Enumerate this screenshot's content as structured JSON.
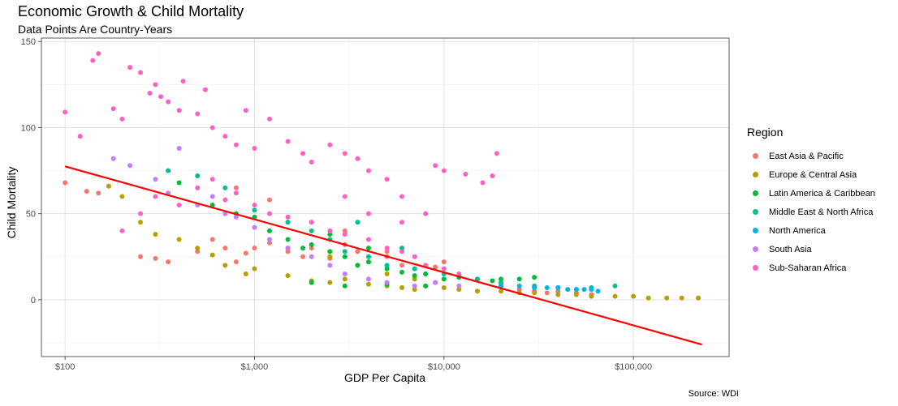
{
  "title": "Economic Growth & Child Mortality",
  "subtitle": "Data Points Are Country-Years",
  "caption": "Source: WDI",
  "chart_data": {
    "type": "scatter",
    "title": "Economic Growth & Child Mortality",
    "subtitle": "Data Points Are Country-Years",
    "xlabel": "GDP Per Capita",
    "ylabel": "Child Mortality",
    "x_scale": "log10",
    "xlim": [
      75,
      320000
    ],
    "ylim": [
      -33,
      152
    ],
    "x_ticks": [
      100,
      1000,
      10000,
      100000
    ],
    "x_tick_labels": [
      "$100",
      "$1,000",
      "$10,000",
      "$100,000"
    ],
    "y_ticks": [
      0,
      50,
      100,
      150
    ],
    "y_tick_labels": [
      "0",
      "50",
      "100",
      "150"
    ],
    "grid": true,
    "legend_title": "Region",
    "legend_position": "right",
    "series": [
      {
        "name": "East Asia & Pacific",
        "color": "#F8766D",
        "points": [
          [
            100,
            68
          ],
          [
            130,
            63
          ],
          [
            150,
            62
          ],
          [
            250,
            25
          ],
          [
            300,
            24
          ],
          [
            350,
            22
          ],
          [
            500,
            28
          ],
          [
            600,
            35
          ],
          [
            700,
            30
          ],
          [
            800,
            22
          ],
          [
            900,
            27
          ],
          [
            1000,
            30
          ],
          [
            1200,
            33
          ],
          [
            1500,
            28
          ],
          [
            1800,
            25
          ],
          [
            2000,
            30
          ],
          [
            2500,
            24
          ],
          [
            3000,
            32
          ],
          [
            3500,
            28
          ],
          [
            4000,
            22
          ],
          [
            5000,
            25
          ],
          [
            6000,
            20
          ],
          [
            7000,
            18
          ],
          [
            8000,
            15
          ],
          [
            9000,
            19
          ],
          [
            10000,
            22
          ],
          [
            12000,
            14
          ],
          [
            15000,
            12
          ],
          [
            20000,
            9
          ],
          [
            25000,
            6
          ],
          [
            30000,
            5
          ],
          [
            35000,
            4
          ],
          [
            40000,
            5
          ],
          [
            50000,
            4
          ],
          [
            60000,
            3
          ],
          [
            800,
            65
          ],
          [
            1200,
            58
          ],
          [
            2000,
            45
          ],
          [
            3000,
            40
          ],
          [
            5000,
            28
          ]
        ]
      },
      {
        "name": "Europe & Central Asia",
        "color": "#B79F00",
        "points": [
          [
            170,
            66
          ],
          [
            200,
            60
          ],
          [
            250,
            45
          ],
          [
            300,
            38
          ],
          [
            400,
            35
          ],
          [
            500,
            30
          ],
          [
            600,
            26
          ],
          [
            700,
            20
          ],
          [
            900,
            15
          ],
          [
            1000,
            18
          ],
          [
            1500,
            14
          ],
          [
            2000,
            11
          ],
          [
            2500,
            10
          ],
          [
            3000,
            12
          ],
          [
            4000,
            9
          ],
          [
            5000,
            8
          ],
          [
            6000,
            7
          ],
          [
            7000,
            6
          ],
          [
            8000,
            8
          ],
          [
            10000,
            7
          ],
          [
            12000,
            6
          ],
          [
            15000,
            5
          ],
          [
            20000,
            5
          ],
          [
            25000,
            4
          ],
          [
            30000,
            4
          ],
          [
            40000,
            3
          ],
          [
            50000,
            3
          ],
          [
            60000,
            2
          ],
          [
            80000,
            2
          ],
          [
            100000,
            2
          ],
          [
            120000,
            1
          ],
          [
            150000,
            1
          ],
          [
            180000,
            1
          ],
          [
            220000,
            1
          ],
          [
            1500,
            30
          ],
          [
            2500,
            25
          ],
          [
            3500,
            20
          ],
          [
            5000,
            15
          ],
          [
            7000,
            12
          ],
          [
            9000,
            10
          ]
        ]
      },
      {
        "name": "Latin America & Caribbean",
        "color": "#00BA38",
        "points": [
          [
            400,
            68
          ],
          [
            600,
            55
          ],
          [
            800,
            50
          ],
          [
            1000,
            48
          ],
          [
            1200,
            40
          ],
          [
            1500,
            35
          ],
          [
            1800,
            30
          ],
          [
            2000,
            32
          ],
          [
            2500,
            28
          ],
          [
            3000,
            25
          ],
          [
            3500,
            20
          ],
          [
            4000,
            22
          ],
          [
            5000,
            18
          ],
          [
            6000,
            16
          ],
          [
            7000,
            14
          ],
          [
            8000,
            15
          ],
          [
            10000,
            12
          ],
          [
            12000,
            13
          ],
          [
            15000,
            12
          ],
          [
            18000,
            11
          ],
          [
            20000,
            12
          ],
          [
            25000,
            12
          ],
          [
            30000,
            13
          ],
          [
            2000,
            10
          ],
          [
            3000,
            8
          ],
          [
            5000,
            9
          ],
          [
            8000,
            8
          ],
          [
            1500,
            45
          ],
          [
            2500,
            38
          ],
          [
            4000,
            30
          ]
        ]
      },
      {
        "name": "Middle East & North Africa",
        "color": "#00C08B",
        "points": [
          [
            350,
            75
          ],
          [
            500,
            72
          ],
          [
            700,
            65
          ],
          [
            1000,
            52
          ],
          [
            1500,
            45
          ],
          [
            2000,
            40
          ],
          [
            2500,
            35
          ],
          [
            3000,
            28
          ],
          [
            4000,
            25
          ],
          [
            5000,
            20
          ],
          [
            7000,
            18
          ],
          [
            10000,
            15
          ],
          [
            15000,
            12
          ],
          [
            20000,
            10
          ],
          [
            30000,
            8
          ],
          [
            40000,
            7
          ],
          [
            50000,
            6
          ],
          [
            60000,
            7
          ],
          [
            80000,
            8
          ],
          [
            3500,
            45
          ],
          [
            6000,
            30
          ]
        ]
      },
      {
        "name": "North America",
        "color": "#00B4F0",
        "points": [
          [
            20000,
            8
          ],
          [
            25000,
            8
          ],
          [
            30000,
            7
          ],
          [
            35000,
            7
          ],
          [
            40000,
            7
          ],
          [
            45000,
            6
          ],
          [
            50000,
            6
          ],
          [
            55000,
            6
          ],
          [
            60000,
            6
          ],
          [
            65000,
            5
          ]
        ]
      },
      {
        "name": "South Asia",
        "color": "#C77CFF",
        "points": [
          [
            180,
            82
          ],
          [
            220,
            78
          ],
          [
            300,
            70
          ],
          [
            350,
            62
          ],
          [
            400,
            88
          ],
          [
            500,
            55
          ],
          [
            600,
            60
          ],
          [
            700,
            50
          ],
          [
            800,
            48
          ],
          [
            1000,
            42
          ],
          [
            1200,
            35
          ],
          [
            1500,
            30
          ],
          [
            2000,
            25
          ],
          [
            2500,
            20
          ],
          [
            3000,
            15
          ],
          [
            4000,
            12
          ],
          [
            5000,
            10
          ],
          [
            7000,
            8
          ],
          [
            9000,
            10
          ],
          [
            12000,
            8
          ]
        ]
      },
      {
        "name": "Sub-Saharan Africa",
        "color": "#FF61C3",
        "points": [
          [
            100,
            109
          ],
          [
            120,
            95
          ],
          [
            140,
            139
          ],
          [
            150,
            143
          ],
          [
            180,
            111
          ],
          [
            200,
            105
          ],
          [
            220,
            135
          ],
          [
            250,
            132
          ],
          [
            280,
            120
          ],
          [
            300,
            125
          ],
          [
            320,
            118
          ],
          [
            350,
            115
          ],
          [
            400,
            110
          ],
          [
            420,
            127
          ],
          [
            500,
            108
          ],
          [
            550,
            122
          ],
          [
            600,
            100
          ],
          [
            700,
            95
          ],
          [
            800,
            90
          ],
          [
            900,
            110
          ],
          [
            1000,
            88
          ],
          [
            1200,
            105
          ],
          [
            1500,
            92
          ],
          [
            1800,
            85
          ],
          [
            2000,
            80
          ],
          [
            2500,
            90
          ],
          [
            3000,
            85
          ],
          [
            3500,
            82
          ],
          [
            4000,
            75
          ],
          [
            5000,
            70
          ],
          [
            6000,
            60
          ],
          [
            8000,
            50
          ],
          [
            9000,
            78
          ],
          [
            10000,
            75
          ],
          [
            13000,
            73
          ],
          [
            16000,
            68
          ],
          [
            18000,
            72
          ],
          [
            19000,
            85
          ],
          [
            200,
            40
          ],
          [
            250,
            50
          ],
          [
            300,
            60
          ],
          [
            400,
            55
          ],
          [
            500,
            65
          ],
          [
            600,
            70
          ],
          [
            700,
            58
          ],
          [
            800,
            62
          ],
          [
            1000,
            55
          ],
          [
            1200,
            50
          ],
          [
            1500,
            48
          ],
          [
            2000,
            45
          ],
          [
            2500,
            40
          ],
          [
            3000,
            38
          ],
          [
            4000,
            35
          ],
          [
            5000,
            30
          ],
          [
            6000,
            28
          ],
          [
            7000,
            25
          ],
          [
            8000,
            20
          ],
          [
            10000,
            18
          ],
          [
            12000,
            15
          ],
          [
            4000,
            50
          ],
          [
            6000,
            45
          ],
          [
            3000,
            60
          ]
        ]
      }
    ],
    "trend_line": {
      "color": "#FF0000",
      "x": [
        100,
        230000
      ],
      "y": [
        77.5,
        -26
      ]
    }
  }
}
